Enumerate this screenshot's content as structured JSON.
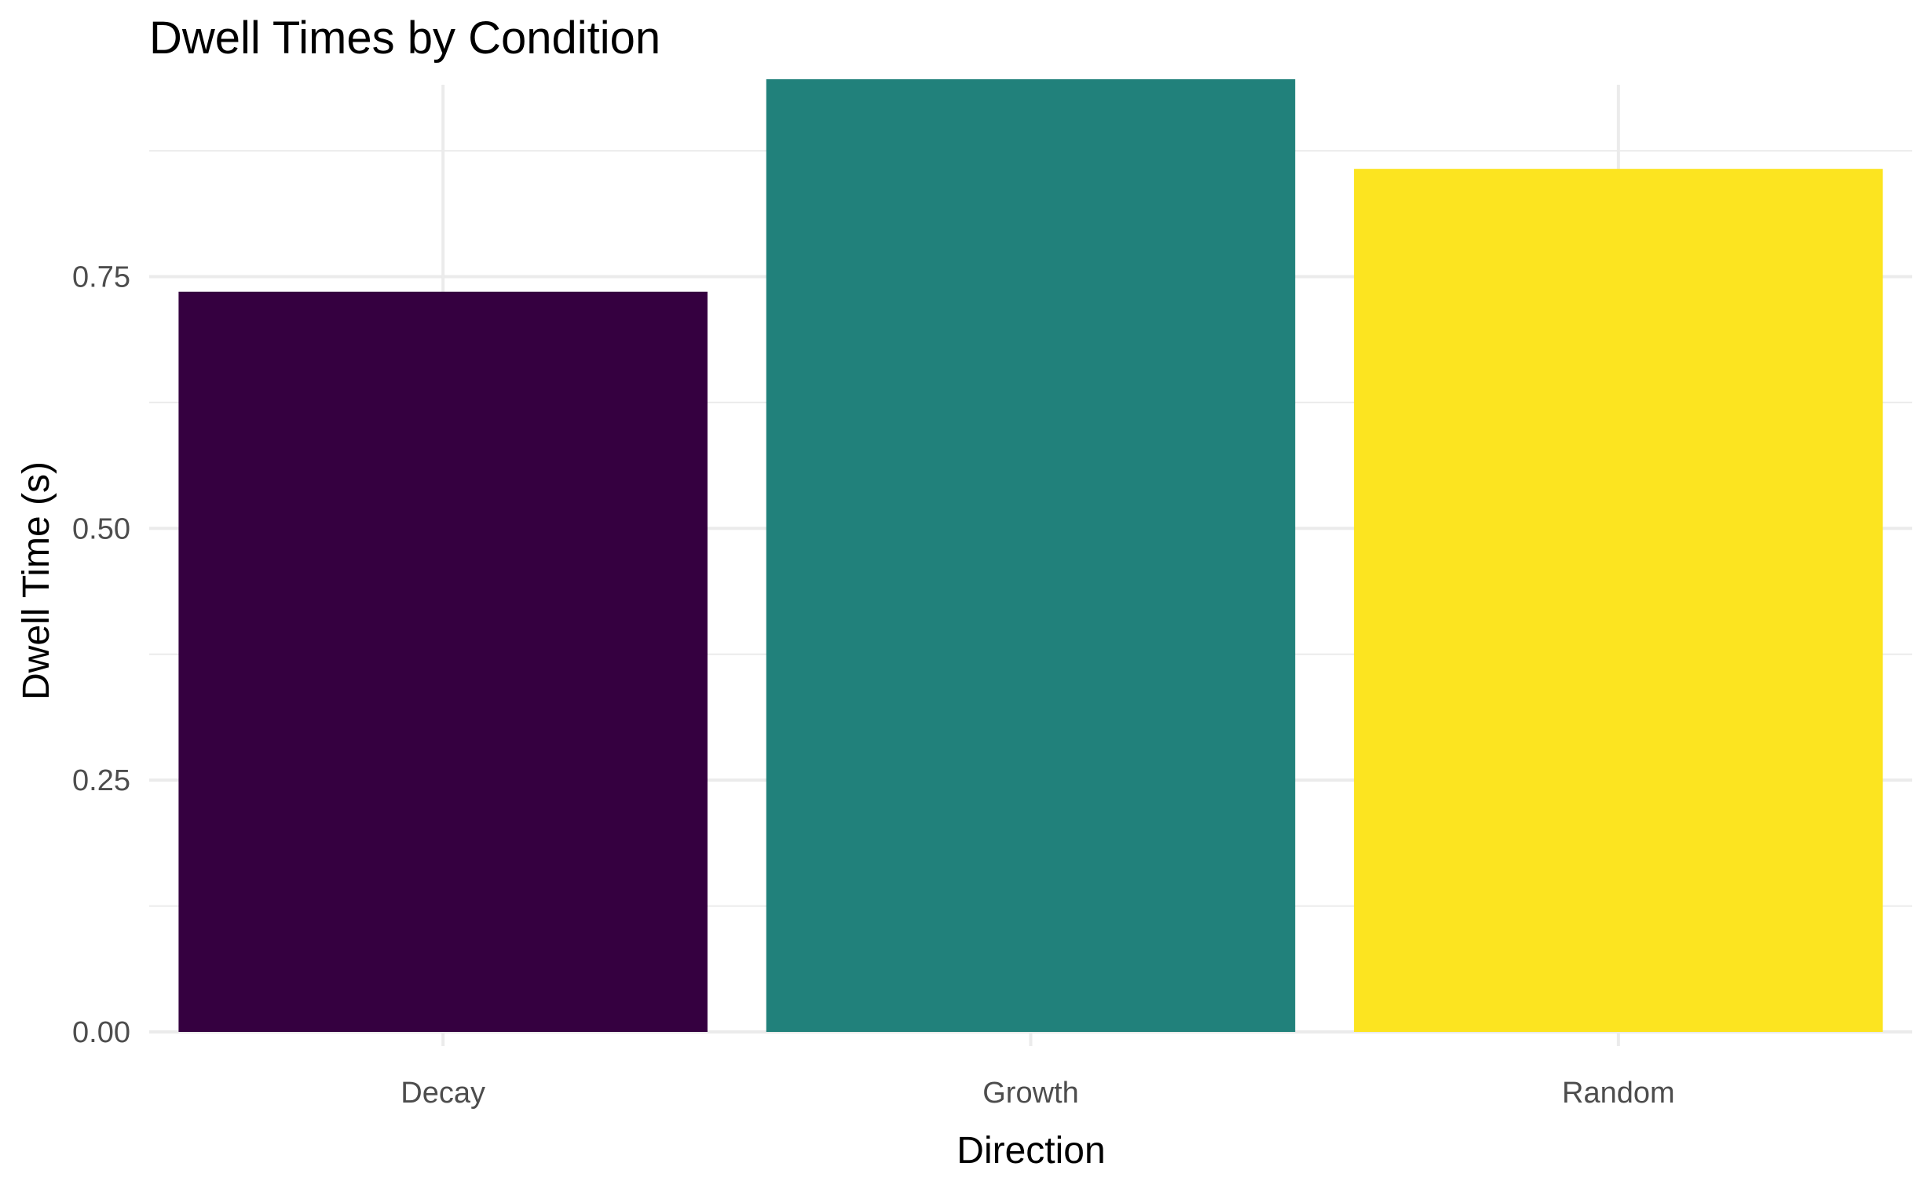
{
  "chart_data": {
    "type": "bar",
    "title": "Dwell Times by Condition",
    "xlabel": "Direction",
    "ylabel": "Dwell Time (s)",
    "categories": [
      "Decay",
      "Growth",
      "Random"
    ],
    "values": [
      0.735,
      0.946,
      0.857
    ],
    "colors": [
      "#350040",
      "#21817b",
      "#fce420"
    ],
    "ylim": [
      0,
      0.99
    ],
    "yticks": [
      0,
      0.25,
      0.5,
      0.75
    ],
    "ytick_labels": [
      "0.00",
      "0.25",
      "0.50",
      "0.75"
    ],
    "grid": true,
    "legend": "none"
  }
}
